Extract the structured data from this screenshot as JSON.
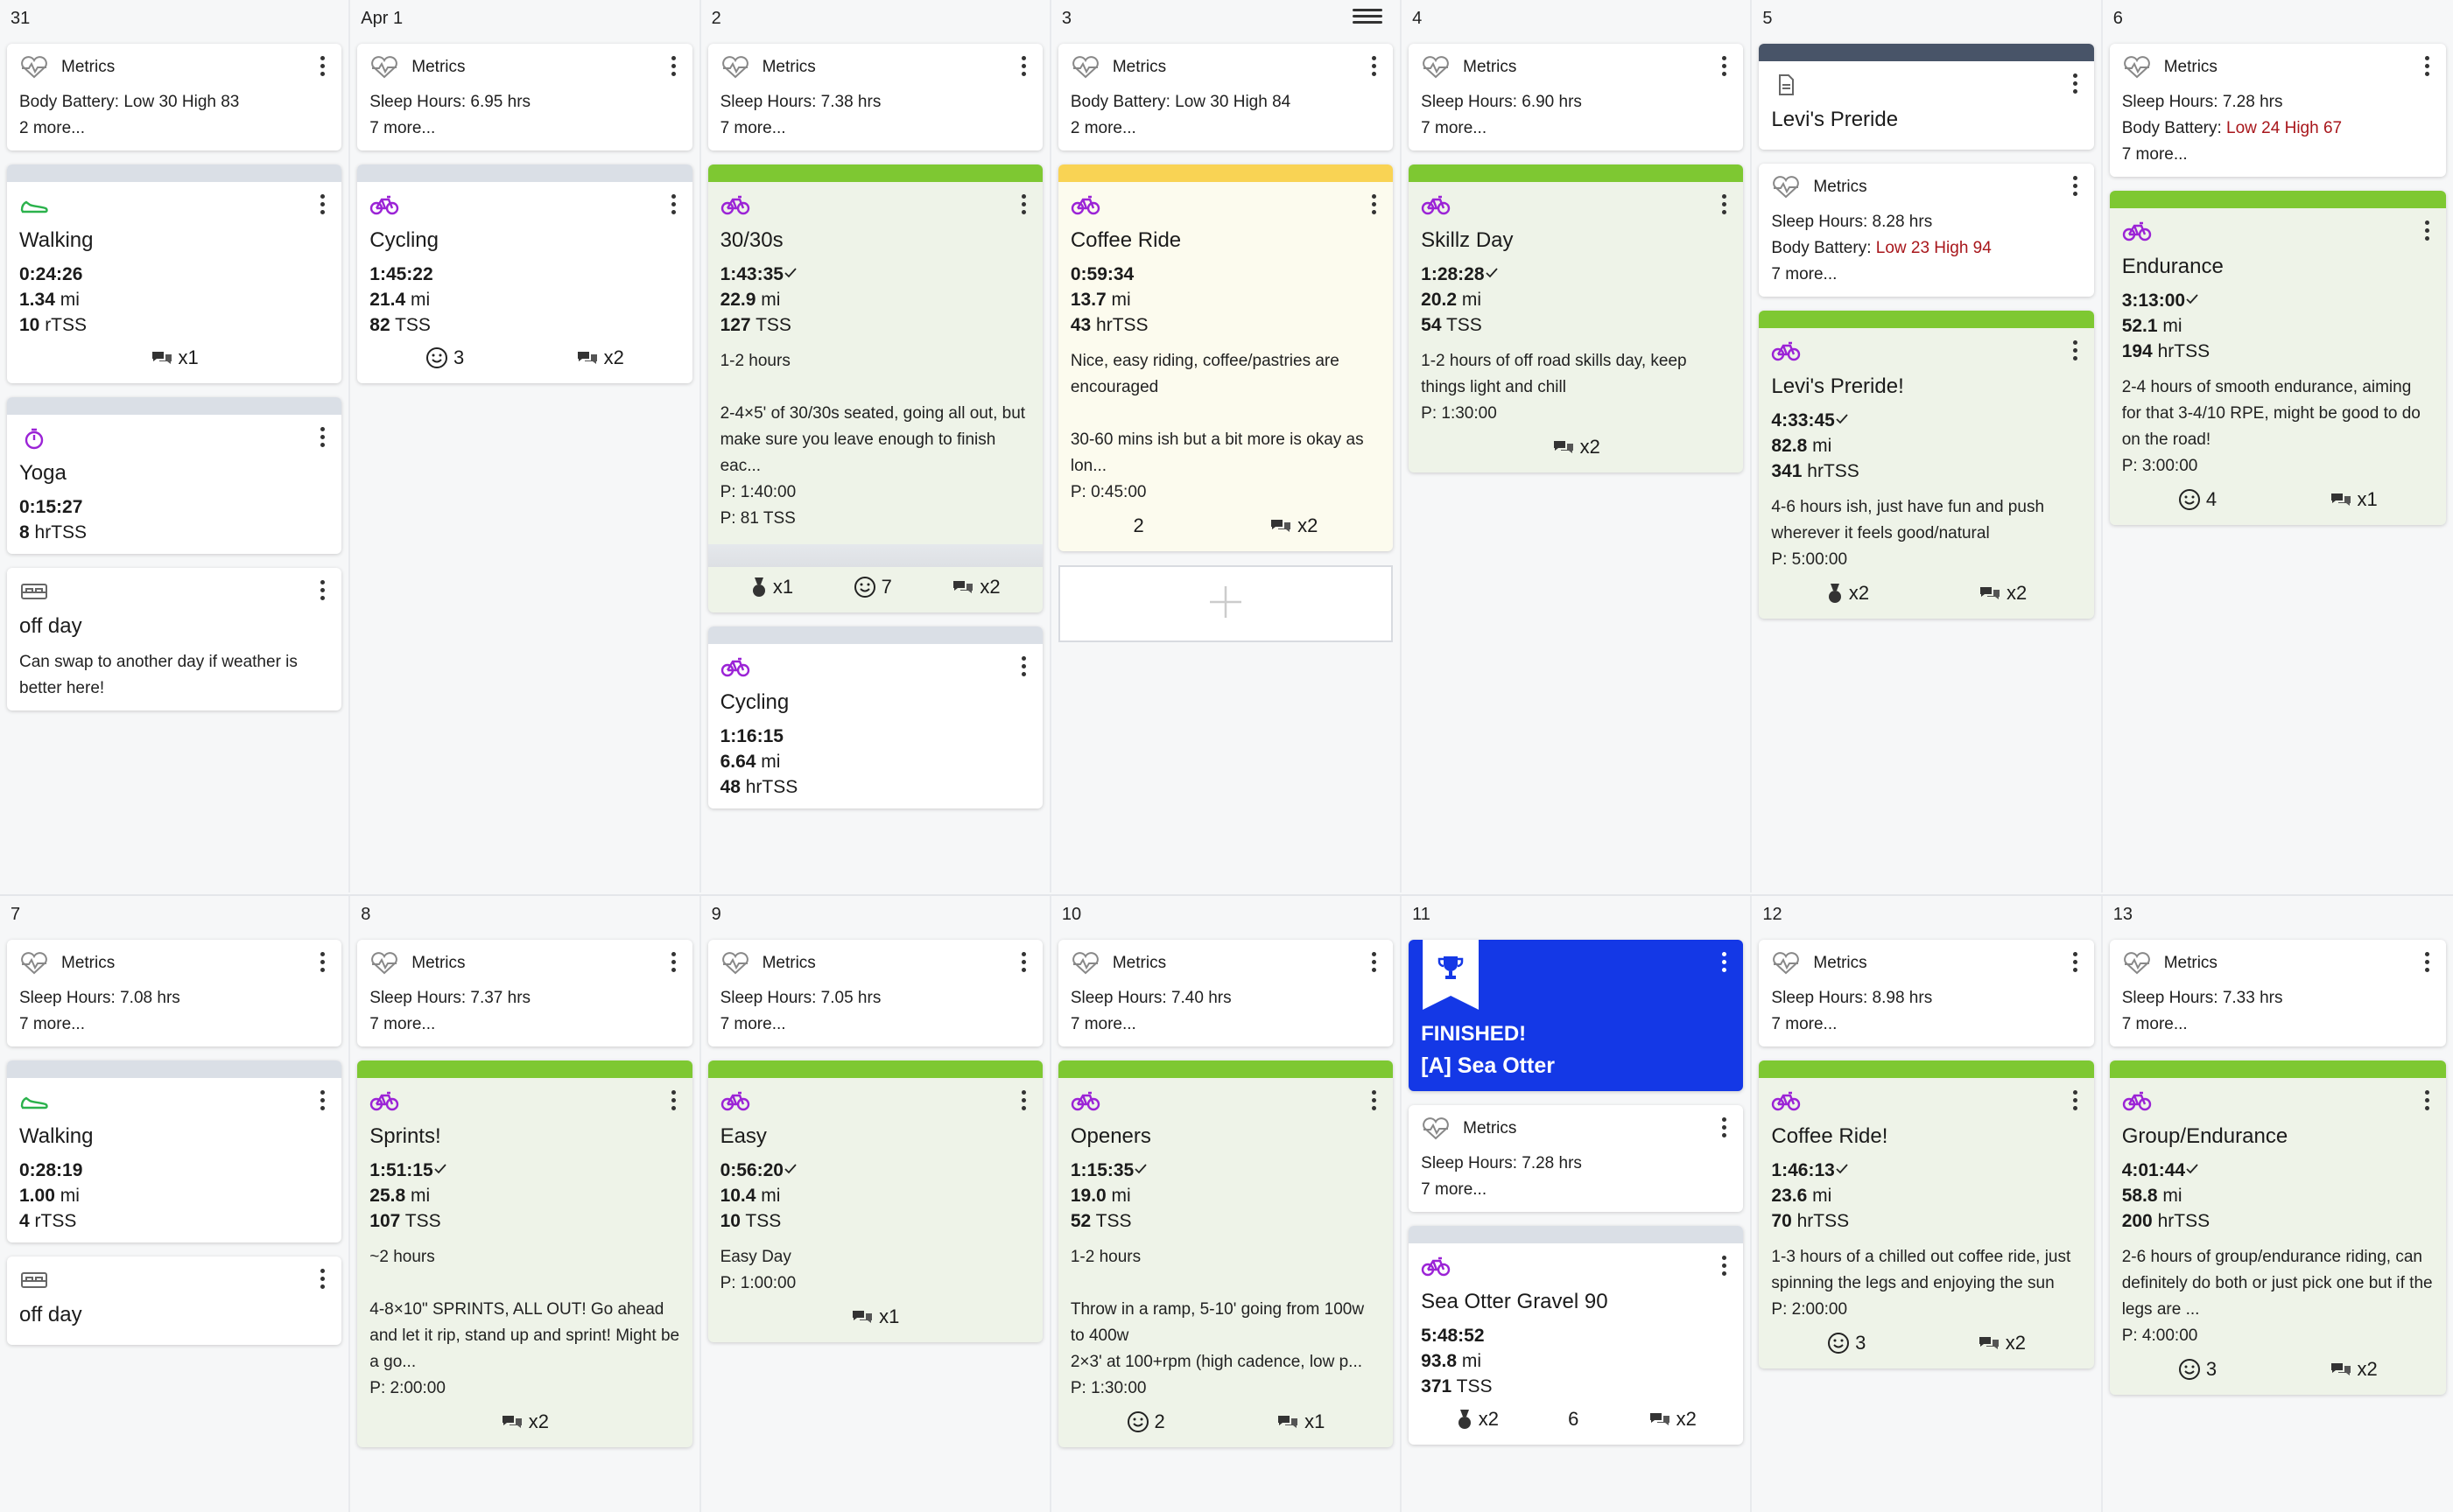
{
  "week1": [
    {
      "num": "31",
      "cards": [
        {
          "kind": "metrics",
          "label": "Metrics",
          "lines": [
            {
              "t": "Body Battery: Low 30 High 83"
            }
          ],
          "more": "2 more..."
        },
        {
          "kind": "workout",
          "icon": "shoe-icon",
          "title": "Walking",
          "bar": "gray",
          "stats": [
            [
              "0:24:26",
              ""
            ],
            [
              "1.34",
              " mi"
            ],
            [
              "10",
              " rTSS"
            ]
          ],
          "foot": [
            {
              "icon": "chat-icon",
              "t": "x1"
            }
          ]
        },
        {
          "kind": "workout",
          "icon": "stopwatch-icon",
          "title": "Yoga",
          "bar": "gray",
          "stats": [
            [
              "0:15:27",
              ""
            ],
            [
              "8",
              " hrTSS"
            ]
          ]
        },
        {
          "kind": "note",
          "icon": "bed-icon",
          "title": "off day",
          "desc": "Can swap to another day if weather is better here!"
        }
      ]
    },
    {
      "num": "Apr 1",
      "cards": [
        {
          "kind": "metrics",
          "label": "Metrics",
          "lines": [
            {
              "t": "Sleep Hours: 6.95 hrs"
            }
          ],
          "more": "7 more..."
        },
        {
          "kind": "workout",
          "icon": "bike-icon",
          "title": "Cycling",
          "bar": "gray",
          "stats": [
            [
              "1:45:22",
              ""
            ],
            [
              "21.4",
              " mi"
            ],
            [
              "82",
              " TSS"
            ]
          ],
          "foot": [
            {
              "icon": "smile-icon",
              "t": "3"
            },
            {
              "icon": "chat-icon",
              "t": "x2"
            }
          ]
        }
      ]
    },
    {
      "num": "2",
      "cards": [
        {
          "kind": "metrics",
          "label": "Metrics",
          "lines": [
            {
              "t": "Sleep Hours: 7.38 hrs"
            }
          ],
          "more": "7 more..."
        },
        {
          "kind": "workout",
          "icon": "bike-icon",
          "title": "30/30s",
          "bar": "green",
          "color": "green",
          "stats": [
            [
              "1:43:35",
              "check"
            ],
            [
              "22.9",
              " mi"
            ],
            [
              "127",
              " TSS"
            ]
          ],
          "desc": "1-2 hours\n\n2-4×5' of 30/30s seated, going all out, but make sure you leave enough to finish eac...\nP: 1:40:00\nP: 81 TSS",
          "strip": true,
          "foot": [
            {
              "icon": "medal-icon",
              "t": "x1"
            },
            {
              "icon": "smile-icon",
              "t": "7"
            },
            {
              "icon": "chat-icon",
              "t": "x2"
            }
          ]
        },
        {
          "kind": "workout",
          "icon": "bike-icon",
          "title": "Cycling",
          "bar": "gray",
          "stats": [
            [
              "1:16:15",
              ""
            ],
            [
              "6.64",
              " mi"
            ],
            [
              "48",
              " hrTSS"
            ]
          ]
        }
      ]
    },
    {
      "num": "3",
      "hamburger": true,
      "cards": [
        {
          "kind": "metrics",
          "label": "Metrics",
          "lines": [
            {
              "t": "Body Battery: Low 30 High 84"
            }
          ],
          "more": "2 more..."
        },
        {
          "kind": "workout",
          "icon": "bike-icon",
          "title": "Coffee Ride",
          "bar": "yellow",
          "color": "yellow",
          "stats": [
            [
              "0:59:34",
              ""
            ],
            [
              "13.7",
              " mi"
            ],
            [
              "43",
              " hrTSS"
            ]
          ],
          "desc": "Nice, easy riding, coffee/pastries are encouraged\n\n30-60 mins ish but a bit more is okay as lon...\nP: 0:45:00",
          "foot": [
            {
              "icon": "",
              "t": "2"
            },
            {
              "icon": "chat-icon",
              "t": "x2"
            }
          ]
        },
        {
          "kind": "add"
        }
      ]
    },
    {
      "num": "4",
      "cards": [
        {
          "kind": "metrics",
          "label": "Metrics",
          "lines": [
            {
              "t": "Sleep Hours: 6.90 hrs"
            }
          ],
          "more": "7 more..."
        },
        {
          "kind": "workout",
          "icon": "bike-icon",
          "title": "Skillz Day",
          "bar": "green",
          "color": "green",
          "stats": [
            [
              "1:28:28",
              "check"
            ],
            [
              "20.2",
              " mi"
            ],
            [
              "54",
              " TSS"
            ]
          ],
          "desc": "1-2 hours of off road skills day, keep things light and chill\nP: 1:30:00",
          "foot": [
            {
              "icon": "chat-icon",
              "t": "x2"
            }
          ]
        }
      ]
    },
    {
      "num": "5",
      "cards": [
        {
          "kind": "doc",
          "icon": "document-icon",
          "title": "Levi's Preride"
        },
        {
          "kind": "metrics",
          "label": "Metrics",
          "lines": [
            {
              "t": "Sleep Hours: 8.28 hrs"
            },
            {
              "t": "Body Battery: ",
              "r": "Low 23 High 94"
            }
          ],
          "more": "7 more..."
        },
        {
          "kind": "workout",
          "icon": "bike-icon",
          "title": "Levi's Preride!",
          "bar": "green",
          "color": "green",
          "stats": [
            [
              "4:33:45",
              "check"
            ],
            [
              "82.8",
              " mi"
            ],
            [
              "341",
              " hrTSS"
            ]
          ],
          "desc": "4-6 hours ish, just have fun and push wherever it feels good/natural\nP: 5:00:00",
          "foot": [
            {
              "icon": "medal-icon",
              "t": "x2"
            },
            {
              "icon": "chat-icon",
              "t": "x2"
            }
          ]
        }
      ]
    },
    {
      "num": "6",
      "cards": [
        {
          "kind": "metrics",
          "label": "Metrics",
          "lines": [
            {
              "t": "Sleep Hours: 7.28 hrs"
            },
            {
              "t": "Body Battery: ",
              "r": "Low 24 High 67"
            }
          ],
          "more": "7 more..."
        },
        {
          "kind": "workout",
          "icon": "bike-icon",
          "title": "Endurance",
          "bar": "green",
          "color": "green",
          "stats": [
            [
              "3:13:00",
              "check"
            ],
            [
              "52.1",
              " mi"
            ],
            [
              "194",
              " hrTSS"
            ]
          ],
          "desc": "2-4 hours of smooth endurance, aiming for that 3-4/10 RPE, might be good to do on the road!\nP: 3:00:00",
          "foot": [
            {
              "icon": "smile-icon",
              "t": "4"
            },
            {
              "icon": "chat-icon",
              "t": "x1"
            }
          ]
        }
      ]
    }
  ],
  "week2": [
    {
      "num": "7",
      "cards": [
        {
          "kind": "metrics",
          "label": "Metrics",
          "lines": [
            {
              "t": "Sleep Hours: 7.08 hrs"
            }
          ],
          "more": "7 more..."
        },
        {
          "kind": "workout",
          "icon": "shoe-icon",
          "title": "Walking",
          "bar": "gray",
          "stats": [
            [
              "0:28:19",
              ""
            ],
            [
              "1.00",
              " mi"
            ],
            [
              "4",
              " rTSS"
            ]
          ]
        },
        {
          "kind": "note",
          "icon": "bed-icon",
          "title": "off day"
        }
      ]
    },
    {
      "num": "8",
      "cards": [
        {
          "kind": "metrics",
          "label": "Metrics",
          "lines": [
            {
              "t": "Sleep Hours: 7.37 hrs"
            }
          ],
          "more": "7 more..."
        },
        {
          "kind": "workout",
          "icon": "bike-icon",
          "title": "Sprints!",
          "bar": "green",
          "color": "green",
          "stats": [
            [
              "1:51:15",
              "check"
            ],
            [
              "25.8",
              " mi"
            ],
            [
              "107",
              " TSS"
            ]
          ],
          "desc": "~2 hours\n\n4-8×10\" SPRINTS, ALL OUT! Go ahead and let it rip, stand up and sprint! Might be a go...\nP: 2:00:00",
          "foot": [
            {
              "icon": "chat-icon",
              "t": "x2"
            }
          ]
        }
      ]
    },
    {
      "num": "9",
      "cards": [
        {
          "kind": "metrics",
          "label": "Metrics",
          "lines": [
            {
              "t": "Sleep Hours: 7.05 hrs"
            }
          ],
          "more": "7 more..."
        },
        {
          "kind": "workout",
          "icon": "bike-icon",
          "title": "Easy",
          "bar": "green",
          "color": "green",
          "stats": [
            [
              "0:56:20",
              "check"
            ],
            [
              "10.4",
              " mi"
            ],
            [
              "10",
              " TSS"
            ]
          ],
          "desc": "Easy Day\nP: 1:00:00",
          "foot": [
            {
              "icon": "chat-icon",
              "t": "x1"
            }
          ]
        }
      ]
    },
    {
      "num": "10",
      "cards": [
        {
          "kind": "metrics",
          "label": "Metrics",
          "lines": [
            {
              "t": "Sleep Hours: 7.40 hrs"
            }
          ],
          "more": "7 more..."
        },
        {
          "kind": "workout",
          "icon": "bike-icon",
          "title": "Openers",
          "bar": "green",
          "color": "green",
          "stats": [
            [
              "1:15:35",
              "check"
            ],
            [
              "19.0",
              " mi"
            ],
            [
              "52",
              " TSS"
            ]
          ],
          "desc": "1-2 hours\n\nThrow in a ramp, 5-10' going from 100w to 400w\n2×3' at 100+rpm (high cadence, low p...\nP: 1:30:00",
          "foot": [
            {
              "icon": "smile-icon",
              "t": "2"
            },
            {
              "icon": "chat-icon",
              "t": "x1"
            }
          ]
        }
      ]
    },
    {
      "num": "11",
      "cards": [
        {
          "kind": "finished",
          "line1": "FINISHED!",
          "line2": "[A] Sea Otter"
        },
        {
          "kind": "metrics",
          "label": "Metrics",
          "lines": [
            {
              "t": "Sleep Hours: 7.28 hrs"
            }
          ],
          "more": "7 more..."
        },
        {
          "kind": "workout",
          "icon": "bike-icon",
          "title": "Sea Otter Gravel 90",
          "bar": "gray",
          "stats": [
            [
              "5:48:52",
              ""
            ],
            [
              "93.8",
              " mi"
            ],
            [
              "371",
              " TSS"
            ]
          ],
          "foot": [
            {
              "icon": "medal-icon",
              "t": "x2"
            },
            {
              "icon": "",
              "t": "6"
            },
            {
              "icon": "chat-icon",
              "t": "x2"
            }
          ]
        }
      ]
    },
    {
      "num": "12",
      "cards": [
        {
          "kind": "metrics",
          "label": "Metrics",
          "lines": [
            {
              "t": "Sleep Hours: 8.98 hrs"
            }
          ],
          "more": "7 more..."
        },
        {
          "kind": "workout",
          "icon": "bike-icon",
          "title": "Coffee Ride!",
          "bar": "green",
          "color": "green",
          "stats": [
            [
              "1:46:13",
              "check"
            ],
            [
              "23.6",
              " mi"
            ],
            [
              "70",
              " hrTSS"
            ]
          ],
          "desc": "1-3 hours of a chilled out coffee ride, just spinning the legs and enjoying the sun\nP: 2:00:00",
          "foot": [
            {
              "icon": "smile-icon",
              "t": "3"
            },
            {
              "icon": "chat-icon",
              "t": "x2"
            }
          ]
        }
      ]
    },
    {
      "num": "13",
      "cards": [
        {
          "kind": "metrics",
          "label": "Metrics",
          "lines": [
            {
              "t": "Sleep Hours: 7.33 hrs"
            }
          ],
          "more": "7 more..."
        },
        {
          "kind": "workout",
          "icon": "bike-icon",
          "title": "Group/Endurance",
          "bar": "green",
          "color": "green",
          "stats": [
            [
              "4:01:44",
              "check"
            ],
            [
              "58.8",
              " mi"
            ],
            [
              "200",
              " hrTSS"
            ]
          ],
          "desc": "2-6 hours of group/endurance riding, can definitely do both or just pick one but if the legs are ...\nP: 4:00:00",
          "foot": [
            {
              "icon": "smile-icon",
              "t": "3"
            },
            {
              "icon": "chat-icon",
              "t": "x2"
            }
          ]
        }
      ]
    }
  ],
  "colors": {
    "green": "#7ec832",
    "yellow": "#f9d354",
    "accent_purple": "#9b23d6",
    "finished_blue": "#1438e6",
    "red_text": "#a8161b"
  }
}
